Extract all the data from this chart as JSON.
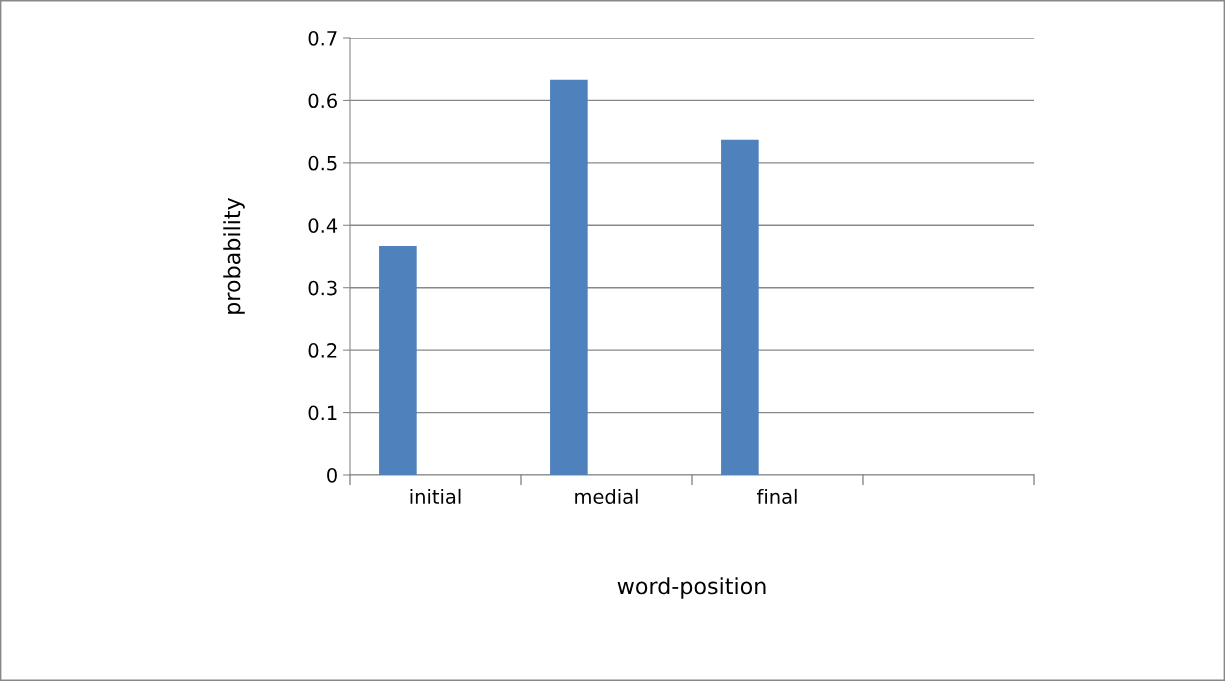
{
  "chart_data": {
    "type": "bar",
    "xlabel": "word-position",
    "ylabel": "probability",
    "categories": [
      "initial",
      "medial",
      "final",
      null
    ],
    "values": [
      0.367,
      0.633,
      0.537,
      null
    ],
    "color": "#4f81bd",
    "ylim": [
      0,
      0.7
    ],
    "yticks": [
      0,
      0.1,
      0.2,
      0.3,
      0.4,
      0.5,
      0.6,
      0.7
    ],
    "grid": "y",
    "legend": false
  }
}
